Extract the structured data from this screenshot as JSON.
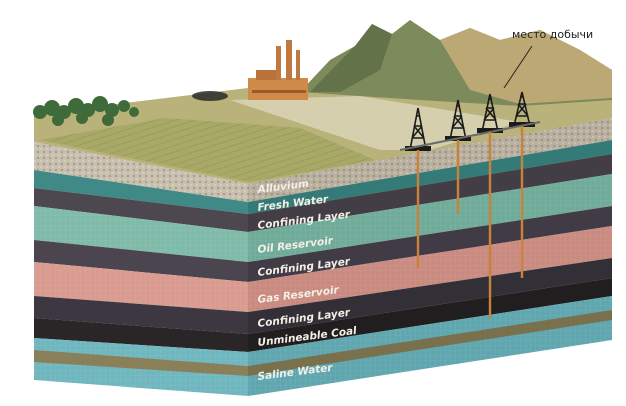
{
  "callout": {
    "text": "место добычи"
  },
  "layers": [
    {
      "name": "alluvium",
      "label": "Alluvium",
      "color": "#c9bfae"
    },
    {
      "name": "fresh-water",
      "label": "Fresh Water",
      "color": "#3f8a86"
    },
    {
      "name": "confining-1",
      "label": "Confining Layer",
      "color": "#4d474f"
    },
    {
      "name": "oil-reservoir",
      "label": "Oil Reservoir",
      "color": "#7fbba8"
    },
    {
      "name": "confining-2",
      "label": "Confining Layer",
      "color": "#4b4550"
    },
    {
      "name": "gas-reservoir",
      "label": "Gas Reservoir",
      "color": "#d99a90"
    },
    {
      "name": "confining-3",
      "label": "Confining Layer",
      "color": "#3c3740"
    },
    {
      "name": "unmineable-coal",
      "label": "Unmineable Coal",
      "color": "#2a2628"
    },
    {
      "name": "saline-water",
      "label": "Saline Water",
      "color": "#6fb6bf"
    }
  ],
  "colors": {
    "well_pipe": "#c8823a",
    "field": "#9aa257",
    "mountain": "#7d8a5c",
    "factory": "#d08a4a",
    "derrick": "#1b1b1b"
  }
}
